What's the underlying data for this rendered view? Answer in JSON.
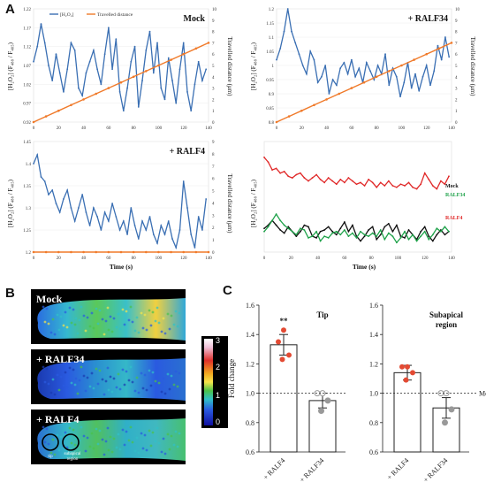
{
  "panel_labels": {
    "a": "A",
    "b": "B",
    "c": "C"
  },
  "legend": {
    "h2o2": "[H₂O₂]",
    "travel": "Travelled distance"
  },
  "axis": {
    "y_left": "[H₂O₂] (F₄₈₈ / F₄₀₅)",
    "y_right": "Travelled distance (μm)",
    "x": "Time (s)"
  },
  "colors": {
    "blue": "#3a6fb3",
    "orange": "#f07a2a",
    "red": "#e02828",
    "black": "#111111",
    "green": "#1fa24a"
  },
  "chart_data": [
    {
      "type": "line",
      "title": "Mock",
      "xlim": [
        0,
        140
      ],
      "ylim": [
        0.92,
        1.22
      ],
      "y2lim": [
        0,
        10
      ],
      "xticks": [
        0,
        20,
        40,
        60,
        80,
        100,
        120,
        140
      ],
      "yticks": [
        0.92,
        0.97,
        1.02,
        1.07,
        1.12,
        1.17,
        1.22
      ],
      "y2ticks": [
        0,
        1,
        2,
        3,
        4,
        5,
        6,
        7,
        8,
        9,
        10
      ],
      "series": [
        {
          "name": "[H₂O₂]",
          "axis": "left",
          "color": "#3a6fb3",
          "x": [
            0,
            3,
            6,
            9,
            12,
            15,
            18,
            21,
            24,
            27,
            30,
            33,
            36,
            39,
            42,
            45,
            48,
            51,
            54,
            57,
            60,
            63,
            66,
            69,
            72,
            75,
            78,
            81,
            84,
            87,
            90,
            93,
            96,
            99,
            102,
            105,
            108,
            111,
            114,
            117,
            120,
            123,
            126,
            129,
            132,
            135,
            138
          ],
          "values": [
            1.08,
            1.12,
            1.18,
            1.13,
            1.07,
            1.03,
            1.1,
            1.05,
            1.0,
            1.06,
            1.13,
            1.11,
            1.01,
            0.99,
            1.05,
            1.08,
            1.11,
            1.06,
            1.02,
            1.1,
            1.17,
            1.06,
            1.14,
            1.0,
            0.95,
            1.01,
            1.08,
            1.12,
            0.96,
            1.03,
            1.11,
            1.16,
            1.05,
            1.13,
            1.01,
            0.98,
            1.09,
            1.03,
            0.97,
            1.06,
            1.13,
            1.0,
            0.95,
            1.02,
            1.08,
            1.03,
            1.06
          ]
        },
        {
          "name": "Travelled distance",
          "axis": "right",
          "color": "#f07a2a",
          "x": [
            0,
            10,
            20,
            30,
            40,
            50,
            60,
            70,
            80,
            90,
            100,
            110,
            120,
            130,
            140
          ],
          "values": [
            0,
            0.5,
            1.0,
            1.5,
            2.0,
            2.5,
            3.0,
            3.5,
            4.0,
            4.5,
            5.0,
            5.5,
            6.0,
            6.5,
            7.0
          ]
        }
      ]
    },
    {
      "type": "line",
      "title": "+ RALF34",
      "xlim": [
        0,
        140
      ],
      "ylim": [
        0.8,
        1.2
      ],
      "y2lim": [
        0,
        10
      ],
      "xticks": [
        0,
        20,
        40,
        60,
        80,
        100,
        120,
        140
      ],
      "yticks": [
        0.8,
        0.85,
        0.9,
        0.95,
        1.0,
        1.05,
        1.1,
        1.15,
        1.2
      ],
      "y2ticks": [
        0,
        1,
        2,
        3,
        4,
        5,
        6,
        7,
        8,
        9,
        10
      ],
      "series": [
        {
          "name": "[H₂O₂]",
          "axis": "left",
          "color": "#3a6fb3",
          "x": [
            0,
            3,
            6,
            9,
            12,
            15,
            18,
            21,
            24,
            27,
            30,
            33,
            36,
            39,
            42,
            45,
            48,
            51,
            54,
            57,
            60,
            63,
            66,
            69,
            72,
            75,
            78,
            81,
            84,
            87,
            90,
            93,
            96,
            99,
            102,
            105,
            108,
            111,
            114,
            117,
            120,
            123,
            126,
            129,
            132,
            135,
            138
          ],
          "values": [
            1.02,
            1.06,
            1.12,
            1.2,
            1.12,
            1.08,
            1.04,
            1.0,
            0.97,
            1.05,
            1.02,
            0.94,
            0.96,
            1.0,
            0.9,
            0.95,
            0.93,
            0.99,
            1.01,
            0.97,
            1.02,
            0.96,
            0.99,
            0.94,
            1.01,
            0.98,
            0.95,
            1.0,
            0.97,
            1.04,
            0.93,
            0.99,
            0.96,
            0.89,
            0.94,
            1.01,
            0.92,
            0.97,
            0.91,
            0.96,
            1.0,
            0.93,
            0.98,
            1.07,
            1.02,
            1.1,
            1.03
          ]
        },
        {
          "name": "Travelled distance",
          "axis": "right",
          "color": "#f07a2a",
          "x": [
            0,
            10,
            20,
            30,
            40,
            50,
            60,
            70,
            80,
            90,
            100,
            110,
            120,
            130,
            140
          ],
          "values": [
            0,
            0.5,
            1.0,
            1.5,
            2.0,
            2.5,
            3.0,
            3.5,
            4.0,
            4.5,
            5.0,
            5.5,
            6.0,
            6.5,
            7.0
          ]
        }
      ]
    },
    {
      "type": "line",
      "title": "+ RALF4",
      "xlim": [
        0,
        140
      ],
      "ylim": [
        1.2,
        1.45
      ],
      "y2lim": [
        0,
        9
      ],
      "xticks": [
        0,
        20,
        40,
        60,
        80,
        100,
        120,
        140
      ],
      "yticks": [
        1.2,
        1.25,
        1.3,
        1.35,
        1.4,
        1.45
      ],
      "y2ticks": [
        0,
        1,
        2,
        3,
        4,
        5,
        6,
        7,
        8,
        9
      ],
      "series": [
        {
          "name": "[H₂O₂]",
          "axis": "left",
          "color": "#3a6fb3",
          "x": [
            0,
            3,
            6,
            9,
            12,
            15,
            18,
            21,
            24,
            27,
            30,
            33,
            36,
            39,
            42,
            45,
            48,
            51,
            54,
            57,
            60,
            63,
            66,
            69,
            72,
            75,
            78,
            81,
            84,
            87,
            90,
            93,
            96,
            99,
            102,
            105,
            108,
            111,
            114,
            117,
            120,
            123,
            126,
            129,
            132,
            135,
            138
          ],
          "values": [
            1.4,
            1.42,
            1.37,
            1.36,
            1.33,
            1.34,
            1.31,
            1.29,
            1.32,
            1.34,
            1.3,
            1.27,
            1.3,
            1.33,
            1.29,
            1.26,
            1.3,
            1.28,
            1.25,
            1.29,
            1.27,
            1.31,
            1.28,
            1.25,
            1.27,
            1.24,
            1.3,
            1.26,
            1.23,
            1.27,
            1.25,
            1.28,
            1.24,
            1.22,
            1.26,
            1.24,
            1.27,
            1.23,
            1.21,
            1.25,
            1.36,
            1.3,
            1.24,
            1.21,
            1.28,
            1.25,
            1.32
          ]
        },
        {
          "name": "Travelled distance",
          "axis": "right",
          "color": "#f07a2a",
          "x": [
            0,
            10,
            20,
            30,
            40,
            50,
            60,
            70,
            80,
            90,
            100,
            110,
            120,
            130,
            140
          ],
          "values": [
            0,
            0,
            0,
            0,
            0,
            0,
            0,
            0,
            0,
            0,
            0,
            0,
            0,
            0,
            0
          ]
        }
      ]
    },
    {
      "type": "line",
      "xlim": [
        0,
        140
      ],
      "xticks": [
        0,
        20,
        40,
        60,
        80,
        100,
        120,
        140
      ],
      "series": [
        {
          "name": "RALF4",
          "color": "#e02828",
          "x": [
            0,
            3,
            6,
            9,
            12,
            15,
            18,
            21,
            24,
            27,
            30,
            33,
            36,
            39,
            42,
            45,
            48,
            51,
            54,
            57,
            60,
            63,
            66,
            69,
            72,
            75,
            78,
            81,
            84,
            87,
            90,
            93,
            96,
            99,
            102,
            105,
            108,
            111,
            114,
            117,
            120,
            123,
            126,
            129,
            132,
            135,
            138
          ],
          "values": [
            1.55,
            1.52,
            1.47,
            1.48,
            1.45,
            1.46,
            1.43,
            1.42,
            1.44,
            1.45,
            1.42,
            1.4,
            1.42,
            1.44,
            1.41,
            1.39,
            1.42,
            1.4,
            1.38,
            1.41,
            1.39,
            1.42,
            1.4,
            1.38,
            1.39,
            1.37,
            1.41,
            1.39,
            1.36,
            1.39,
            1.37,
            1.4,
            1.37,
            1.36,
            1.38,
            1.37,
            1.39,
            1.36,
            1.35,
            1.38,
            1.45,
            1.41,
            1.37,
            1.35,
            1.4,
            1.38,
            1.43
          ]
        },
        {
          "name": "Mock",
          "color": "#111111",
          "x": [
            0,
            3,
            6,
            9,
            12,
            15,
            18,
            21,
            24,
            27,
            30,
            33,
            36,
            39,
            42,
            45,
            48,
            51,
            54,
            57,
            60,
            63,
            66,
            69,
            72,
            75,
            78,
            81,
            84,
            87,
            90,
            93,
            96,
            99,
            102,
            105,
            108,
            111,
            114,
            117,
            120,
            123,
            126,
            129,
            132,
            135,
            138
          ],
          "values": [
            1.1,
            1.12,
            1.15,
            1.12,
            1.09,
            1.07,
            1.11,
            1.08,
            1.05,
            1.08,
            1.12,
            1.11,
            1.05,
            1.04,
            1.08,
            1.09,
            1.11,
            1.08,
            1.06,
            1.1,
            1.14,
            1.08,
            1.12,
            1.05,
            1.02,
            1.05,
            1.09,
            1.11,
            1.03,
            1.06,
            1.11,
            1.13,
            1.08,
            1.12,
            1.05,
            1.04,
            1.09,
            1.06,
            1.03,
            1.08,
            1.11,
            1.05,
            1.02,
            1.06,
            1.09,
            1.06,
            1.08
          ]
        },
        {
          "name": "RALF34",
          "color": "#1fa24a",
          "x": [
            0,
            3,
            6,
            9,
            12,
            15,
            18,
            21,
            24,
            27,
            30,
            33,
            36,
            39,
            42,
            45,
            48,
            51,
            54,
            57,
            60,
            63,
            66,
            69,
            72,
            75,
            78,
            81,
            84,
            87,
            90,
            93,
            96,
            99,
            102,
            105,
            108,
            111,
            114,
            117,
            120,
            123,
            126,
            129,
            132,
            135,
            138
          ],
          "values": [
            1.08,
            1.11,
            1.15,
            1.19,
            1.15,
            1.12,
            1.1,
            1.08,
            1.06,
            1.1,
            1.09,
            1.04,
            1.05,
            1.08,
            1.02,
            1.05,
            1.04,
            1.07,
            1.08,
            1.06,
            1.09,
            1.05,
            1.07,
            1.04,
            1.08,
            1.06,
            1.05,
            1.07,
            1.05,
            1.09,
            1.03,
            1.07,
            1.05,
            1.01,
            1.04,
            1.08,
            1.03,
            1.06,
            1.02,
            1.05,
            1.08,
            1.03,
            1.06,
            1.1,
            1.08,
            1.11,
            1.08
          ]
        }
      ]
    },
    {
      "type": "bar",
      "title": "Tip",
      "categories": [
        "+ RALF4",
        "+ RALF34"
      ],
      "values": [
        1.33,
        0.95
      ],
      "errors": [
        0.07,
        0.05
      ],
      "points": [
        [
          1.43,
          1.35,
          1.26,
          1.23
        ],
        [
          1.0,
          1.0,
          0.95,
          0.88
        ]
      ],
      "point_colors": [
        "#e34a33",
        "#999999"
      ],
      "annotation": "**",
      "ylabel": "Fold change",
      "ylim": [
        0.6,
        1.6
      ],
      "yticks": [
        0.6,
        0.8,
        1.0,
        1.2,
        1.4,
        1.6
      ],
      "reference_line": 1.0
    },
    {
      "type": "bar",
      "title": "Subapical region",
      "categories": [
        "+ RALF4",
        "+ RALF34"
      ],
      "values": [
        1.14,
        0.9
      ],
      "errors": [
        0.05,
        0.07
      ],
      "points": [
        [
          1.18,
          1.18,
          1.14,
          1.09
        ],
        [
          1.0,
          1.0,
          0.89,
          0.8
        ]
      ],
      "point_colors": [
        "#e34a33",
        "#999999"
      ],
      "ylim": [
        0.6,
        1.6
      ],
      "yticks": [
        0.6,
        0.8,
        1.0,
        1.2,
        1.4,
        1.6
      ],
      "reference_line": 1.0,
      "reference_label": "Mock"
    }
  ],
  "microscopy": {
    "rows": [
      {
        "label": "Mock",
        "colormap": "mock"
      },
      {
        "label": "+ RALF34",
        "colormap": "ralf34"
      },
      {
        "label": "+ RALF4",
        "colormap": "ralf4"
      }
    ],
    "roi_labels": [
      "tip",
      "subapical region"
    ],
    "colorbar_ticks": [
      "3",
      "2",
      "1",
      "0"
    ]
  }
}
